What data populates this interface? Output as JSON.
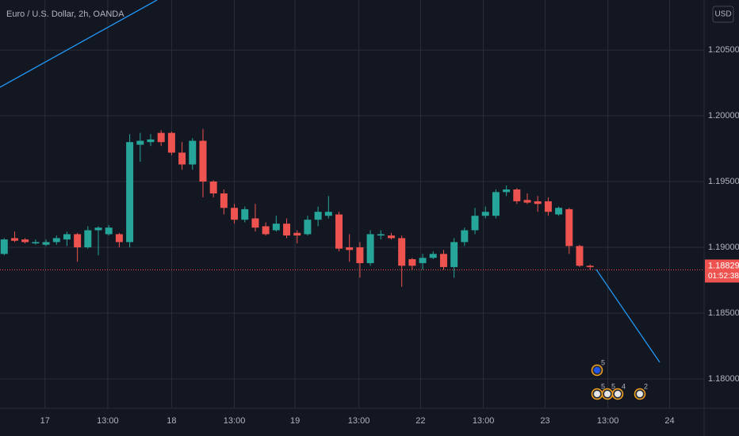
{
  "chart_data": {
    "type": "candlestick",
    "title": "Euro / U.S. Dollar, 2h, OANDA",
    "currency_button": "USD",
    "categories": [
      null,
      null,
      null,
      null,
      null,
      null,
      null,
      null,
      null,
      null,
      null,
      null,
      null,
      null,
      null,
      null,
      null,
      null,
      null,
      null,
      null,
      null,
      null,
      null,
      null,
      null,
      null,
      null,
      null,
      null,
      null,
      null,
      null,
      null,
      null,
      null,
      null,
      null,
      null,
      null,
      null,
      null,
      null,
      null,
      null,
      null,
      null,
      null,
      null,
      null,
      null,
      null,
      null,
      null,
      null,
      null,
      null
    ],
    "open": [
      1.1895,
      1.1907,
      1.1906,
      1.1903,
      1.1902,
      1.1904,
      1.1906,
      1.191,
      1.19,
      1.1913,
      1.191,
      1.191,
      1.1904,
      1.1978,
      1.198,
      1.1987,
      1.1987,
      1.1972,
      1.1963,
      1.1981,
      1.195,
      1.1941,
      1.193,
      1.1921,
      1.1922,
      1.1916,
      1.1913,
      1.1918,
      1.1911,
      1.191,
      1.1921,
      1.1924,
      1.1925,
      1.19,
      1.19,
      1.1888,
      1.1909,
      1.1909,
      1.1907,
      1.1891,
      1.1888,
      1.1892,
      1.1895,
      1.1885,
      1.1904,
      1.1913,
      1.1924,
      1.1924,
      1.1942,
      1.1944,
      1.1936,
      1.1935,
      1.1935,
      1.1925,
      1.1929,
      1.1901,
      1.1886
    ],
    "high": [
      1.1907,
      1.1912,
      1.1907,
      1.1906,
      1.1906,
      1.1909,
      1.1912,
      1.1911,
      1.1916,
      1.1916,
      1.1917,
      1.1911,
      1.1986,
      1.1987,
      1.1986,
      1.1989,
      1.1988,
      1.198,
      1.1983,
      1.199,
      1.1951,
      1.1944,
      1.1933,
      1.1931,
      1.1933,
      1.1919,
      1.1924,
      1.1922,
      1.1913,
      1.1924,
      1.1931,
      1.1939,
      1.1927,
      1.191,
      1.1904,
      1.1913,
      1.1913,
      1.1911,
      1.1909,
      1.1892,
      1.1895,
      1.1897,
      1.1898,
      1.1907,
      1.1915,
      1.193,
      1.1931,
      1.1944,
      1.1947,
      1.1945,
      1.1941,
      1.1939,
      1.1938,
      1.1931,
      1.193,
      1.1902,
      1.1887
    ],
    "low": [
      1.1894,
      1.1904,
      1.1903,
      1.1902,
      1.1901,
      1.1902,
      1.1901,
      1.1889,
      1.1899,
      1.1894,
      1.1909,
      1.19,
      1.19,
      1.1965,
      1.1977,
      1.1977,
      1.197,
      1.1959,
      1.1959,
      1.1938,
      1.1938,
      1.1925,
      1.1918,
      1.1919,
      1.1912,
      1.1909,
      1.1912,
      1.1907,
      1.1903,
      1.1909,
      1.1916,
      1.1922,
      1.1897,
      1.1889,
      1.1877,
      1.1886,
      1.1906,
      1.1906,
      1.187,
      1.1883,
      1.1883,
      1.1891,
      1.1883,
      1.1877,
      1.1901,
      1.191,
      1.1922,
      1.1922,
      1.1939,
      1.1933,
      1.1933,
      1.1927,
      1.1924,
      1.1924,
      1.1895,
      1.1885,
      1.1883
    ],
    "close": [
      1.1906,
      1.1905,
      1.1904,
      1.1904,
      1.1904,
      1.1907,
      1.191,
      1.19,
      1.1913,
      1.1915,
      1.1915,
      1.1904,
      1.198,
      1.1981,
      1.1982,
      1.198,
      1.1972,
      1.1963,
      1.1981,
      1.195,
      1.1941,
      1.193,
      1.1921,
      1.1929,
      1.1915,
      1.191,
      1.1918,
      1.1909,
      1.1909,
      1.1921,
      1.1927,
      1.1927,
      1.1899,
      1.1898,
      1.1888,
      1.191,
      1.191,
      1.1907,
      1.1886,
      1.1886,
      1.1892,
      1.1895,
      1.1885,
      1.1904,
      1.1913,
      1.1924,
      1.1927,
      1.1942,
      1.1944,
      1.1935,
      1.1934,
      1.1933,
      1.1927,
      1.193,
      1.1901,
      1.1886,
      1.1885
    ],
    "up_color": "#26a69a",
    "down_color": "#ef5350",
    "xlim": [
      -0.4,
      66.9
    ],
    "xticks": [
      {
        "value": 3.9,
        "label": "17"
      },
      {
        "value": 9.9,
        "label": "13:00"
      },
      {
        "value": 16.0,
        "label": "18"
      },
      {
        "value": 22.0,
        "label": "13:00"
      },
      {
        "value": 27.8,
        "label": "19"
      },
      {
        "value": 33.9,
        "label": "13:00"
      },
      {
        "value": 39.8,
        "label": "22"
      },
      {
        "value": 45.8,
        "label": "13:00"
      },
      {
        "value": 51.7,
        "label": "23"
      },
      {
        "value": 57.7,
        "label": "13:00"
      },
      {
        "value": 63.6,
        "label": "24"
      }
    ],
    "ylim": [
      1.17777,
      1.2088
    ],
    "yticks": [
      {
        "value": 1.18,
        "label": "1.18000"
      },
      {
        "value": 1.185,
        "label": "1.18500"
      },
      {
        "value": 1.19,
        "label": "1.19000"
      },
      {
        "value": 1.195,
        "label": "1.19500"
      },
      {
        "value": 1.2,
        "label": "1.20000"
      },
      {
        "value": 1.205,
        "label": "1.20500"
      }
    ],
    "grid": true,
    "last_price": {
      "value": 1.18829,
      "label": "1.18829"
    },
    "countdown": "01:52:38",
    "events": [
      "5",
      "5",
      "5",
      "4",
      "2"
    ]
  }
}
